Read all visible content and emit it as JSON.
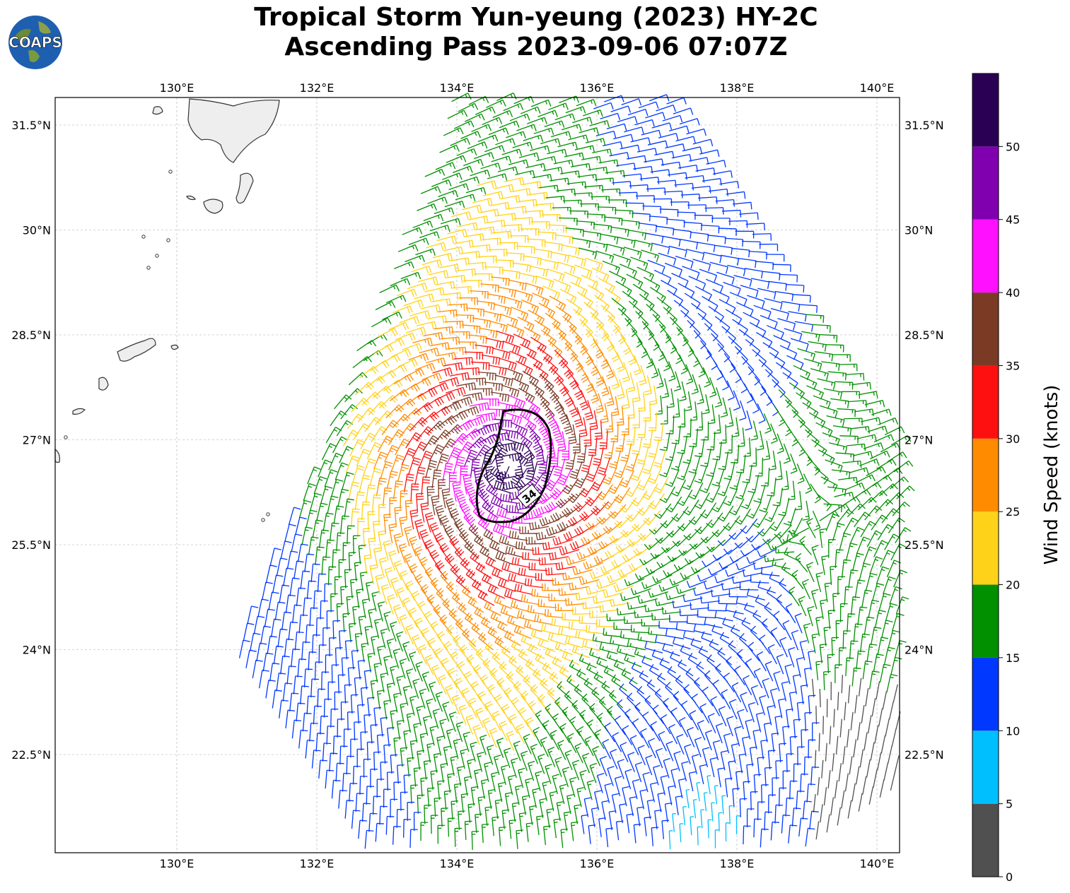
{
  "header": {
    "title_line1": "Tropical Storm Yun-yeung (2023) HY-2C",
    "title_line2": "Ascending Pass 2023-09-06 07:07Z",
    "logo_text": "COAPS"
  },
  "map": {
    "lon_range": [
      128.3,
      140.3
    ],
    "lat_range": [
      21.0,
      31.8
    ],
    "lon_ticks": [
      "130°E",
      "132°E",
      "134°E",
      "136°E",
      "138°E",
      "140°E"
    ],
    "lat_ticks": [
      "31.5°N",
      "30°N",
      "28.5°N",
      "27°N",
      "25.5°N",
      "24°N",
      "22.5°N"
    ],
    "lon_tick_values": [
      130,
      132,
      134,
      136,
      138,
      140
    ],
    "lat_tick_values": [
      31.5,
      30,
      28.5,
      27,
      25.5,
      24,
      22.5
    ],
    "gridlines": true,
    "storm_center": [
      133.9,
      27.3
    ],
    "contour_label": "34"
  },
  "colorbar": {
    "label": "Wind Speed (knots)",
    "tick_labels": [
      "0",
      "5",
      "10",
      "15",
      "20",
      "25",
      "30",
      "35",
      "40",
      "45",
      "50"
    ],
    "bins": [
      {
        "min": 0,
        "max": 5,
        "color": "#505050"
      },
      {
        "min": 5,
        "max": 10,
        "color": "#00bfff"
      },
      {
        "min": 10,
        "max": 15,
        "color": "#0038ff"
      },
      {
        "min": 15,
        "max": 20,
        "color": "#009000"
      },
      {
        "min": 20,
        "max": 25,
        "color": "#ffd21a"
      },
      {
        "min": 25,
        "max": 30,
        "color": "#ff8c00"
      },
      {
        "min": 30,
        "max": 35,
        "color": "#ff1010"
      },
      {
        "min": 35,
        "max": 40,
        "color": "#7b3a24"
      },
      {
        "min": 40,
        "max": 45,
        "color": "#ff10ff"
      },
      {
        "min": 45,
        "max": 50,
        "color": "#8000b0"
      },
      {
        "min": 50,
        "max": 55,
        "color": "#2a0055"
      }
    ]
  }
}
